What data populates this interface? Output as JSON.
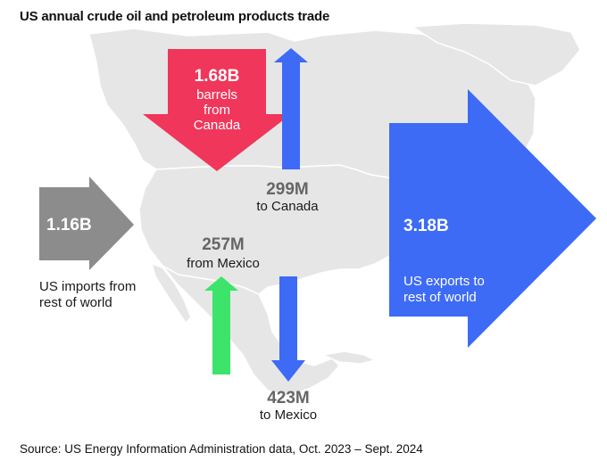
{
  "title": "US annual crude oil and petroleum products trade",
  "source": "Source: US Energy Information Administration data, Oct. 2023 – Sept. 2024",
  "colors": {
    "map": "#e6e6e6",
    "canada_imports": "#f0365a",
    "exports": "#3d6bf5",
    "rest_imports": "#8c8c8c",
    "mexico_imports": "#3de46a",
    "value_text": "#666666"
  },
  "flows": {
    "canada_imports": {
      "value": "1.68B",
      "label_1": "barrels",
      "label_2": "from",
      "label_3": "Canada"
    },
    "exports_to_canada": {
      "value": "299M",
      "label": "to Canada"
    },
    "rest_of_world_imports": {
      "value": "1.16B",
      "label_1": "US imports from",
      "label_2": "rest of world"
    },
    "mexico_imports": {
      "value": "257M",
      "label": "from Mexico"
    },
    "exports_to_mexico": {
      "value": "423M",
      "label": "to Mexico"
    },
    "rest_of_world_exports": {
      "value": "3.18B",
      "label_1": "US exports to",
      "label_2": "rest of world"
    }
  }
}
